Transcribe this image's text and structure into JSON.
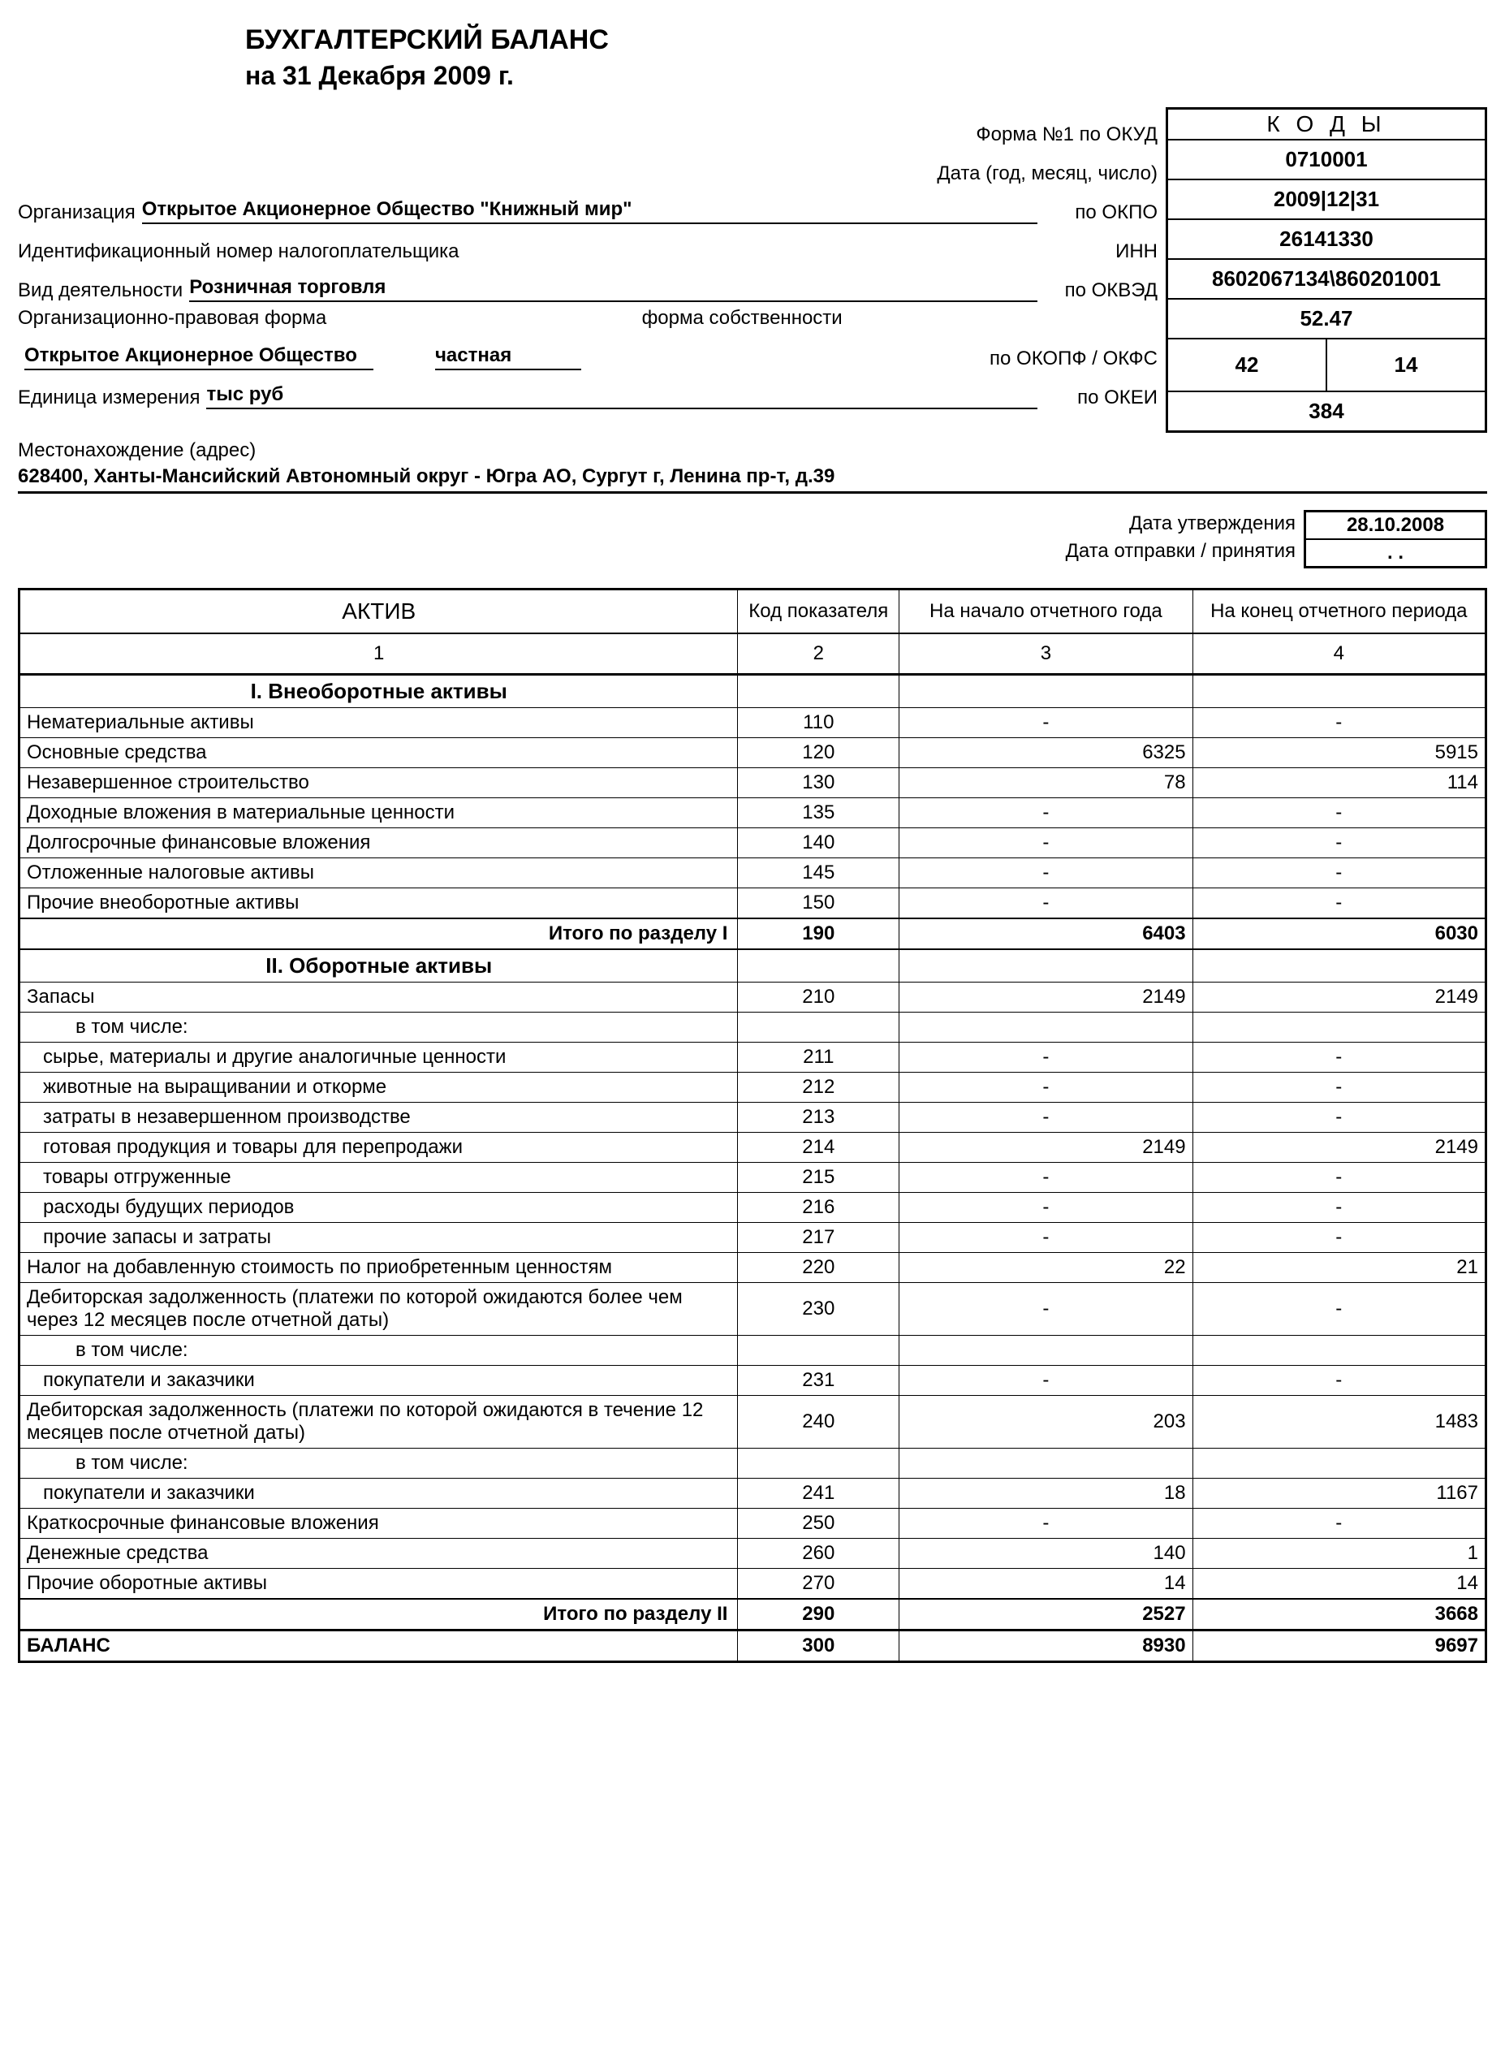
{
  "title": "БУХГАЛТЕРСКИЙ БАЛАНС",
  "subtitle": "на 31 Декабря 2009 г.",
  "codes_header": "К О Д Ы",
  "header_rows": [
    {
      "rlabel": "Форма №1 по ОКУД",
      "value": "0710001"
    },
    {
      "rlabel": "Дата (год, месяц, число)",
      "value": "2009|12|31"
    },
    {
      "label": "Организация",
      "ul": "Открытое  Акционерное Общество \"Книжный мир\"",
      "rlabel": "по ОКПО",
      "value": "26141330"
    },
    {
      "label": "Идентификационный номер налогоплательщика",
      "rlabel": "ИНН",
      "value": "8602067134\\860201001"
    },
    {
      "label": "Вид деятельности",
      "ul": "Розничная  торговля",
      "rlabel": "по ОКВЭД",
      "value": "52.47"
    },
    {
      "label1": "Организационно-правовая форма",
      "label2": "форма собственности",
      "ul1": "Открытое Акционерное Общество",
      "ul2": "частная",
      "rlabel": "по ОКОПФ / ОКФС",
      "split": [
        "42",
        "14"
      ]
    },
    {
      "label": "Единица измерения",
      "ul": "тыс руб",
      "rlabel": "по ОКЕИ",
      "value": "384"
    }
  ],
  "address_label": "Местонахождение (адрес)",
  "address": "628400, Ханты-Мансийский Автономный округ - Югра АО, Сургут г, Ленина пр-т, д.39",
  "approval_label": "Дата утверждения",
  "approval_date": "28.10.2008",
  "send_label": "Дата отправки / принятия",
  "send_date": ". .",
  "table": {
    "headers": [
      "АКТИВ",
      "Код показателя",
      "На начало отчетного года",
      "На конец отчетного периода"
    ],
    "col_nums": [
      "1",
      "2",
      "3",
      "4"
    ],
    "rows": [
      {
        "type": "section",
        "name": "I. Внеоборотные активы"
      },
      {
        "name": "Нематериальные активы",
        "code": "110",
        "v1": "-",
        "v2": "-",
        "c": true
      },
      {
        "name": "Основные средства",
        "code": "120",
        "v1": "6325",
        "v2": "5915"
      },
      {
        "name": "Незавершенное строительство",
        "code": "130",
        "v1": "78",
        "v2": "114"
      },
      {
        "name": "Доходные вложения в материальные ценности",
        "code": "135",
        "v1": "-",
        "v2": "-",
        "c": true
      },
      {
        "name": "Долгосрочные финансовые вложения",
        "code": "140",
        "v1": "-",
        "v2": "-",
        "c": true
      },
      {
        "name": "Отложенные налоговые активы",
        "code": "145",
        "v1": "-",
        "v2": "-",
        "c": true
      },
      {
        "name": "Прочие внеоборотные активы",
        "code": "150",
        "v1": "-",
        "v2": "-",
        "c": true
      },
      {
        "type": "total",
        "name": "Итого по разделу I",
        "code": "190",
        "v1": "6403",
        "v2": "6030"
      },
      {
        "type": "section",
        "name": "II. Оборотные активы"
      },
      {
        "name": "Запасы",
        "code": "210",
        "v1": "2149",
        "v2": "2149"
      },
      {
        "name": "в том числе:",
        "indent": "including",
        "noborder": true
      },
      {
        "name": "сырье, материалы и другие аналогичные ценности",
        "indent": "indent2",
        "code": "211",
        "v1": "-",
        "v2": "-",
        "c": true
      },
      {
        "name": "животные на выращивании и откорме",
        "indent": "indent2",
        "code": "212",
        "v1": "-",
        "v2": "-",
        "c": true
      },
      {
        "name": "затраты в незавершенном производстве",
        "indent": "indent2",
        "code": "213",
        "v1": "-",
        "v2": "-",
        "c": true
      },
      {
        "name": "готовая продукция и товары для перепродажи",
        "indent": "indent2",
        "code": "214",
        "v1": "2149",
        "v2": "2149"
      },
      {
        "name": "товары отгруженные",
        "indent": "indent2",
        "code": "215",
        "v1": "-",
        "v2": "-",
        "c": true
      },
      {
        "name": "расходы будущих периодов",
        "indent": "indent2",
        "code": "216",
        "v1": "-",
        "v2": "-",
        "c": true
      },
      {
        "name": "прочие запасы и затраты",
        "indent": "indent2",
        "code": "217",
        "v1": "-",
        "v2": "-",
        "c": true
      },
      {
        "name": "Налог на добавленную стоимость по приобретенным ценностям",
        "code": "220",
        "v1": "22",
        "v2": "21"
      },
      {
        "name": "Дебиторская задолженность (платежи по которой ожидаются более чем через 12 месяцев после отчетной даты)",
        "code": "230",
        "v1": "-",
        "v2": "-",
        "c": true
      },
      {
        "name": "в том числе:",
        "indent": "including",
        "noborder": true
      },
      {
        "name": "покупатели и заказчики",
        "indent": "indent2",
        "code": "231",
        "v1": "-",
        "v2": "-",
        "c": true
      },
      {
        "name": "Дебиторская задолженность (платежи по которой ожидаются в течение 12 месяцев после отчетной даты)",
        "code": "240",
        "v1": "203",
        "v2": "1483"
      },
      {
        "name": "в том числе:",
        "indent": "including",
        "noborder": true
      },
      {
        "name": "покупатели и заказчики",
        "indent": "indent2",
        "code": "241",
        "v1": "18",
        "v2": "1167"
      },
      {
        "name": "Краткосрочные финансовые вложения",
        "code": "250",
        "v1": "-",
        "v2": "-",
        "c": true
      },
      {
        "name": "Денежные средства",
        "code": "260",
        "v1": "140",
        "v2": "1"
      },
      {
        "name": "Прочие оборотные активы",
        "code": "270",
        "v1": "14",
        "v2": "14"
      },
      {
        "type": "total",
        "name": "Итого по разделу II",
        "code": "290",
        "v1": "2527",
        "v2": "3668"
      },
      {
        "type": "grand",
        "name": "БАЛАНС",
        "code": "300",
        "v1": "8930",
        "v2": "9697"
      }
    ]
  }
}
